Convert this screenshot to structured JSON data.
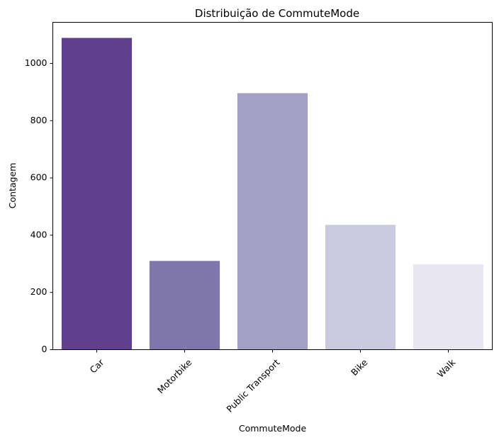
{
  "chart_data": {
    "type": "bar",
    "title": "Distribuição de CommuteMode",
    "xlabel": "CommuteMode",
    "ylabel": "Contagem",
    "categories": [
      "Car",
      "Motorbike",
      "Public Transport",
      "Bike",
      "Walk"
    ],
    "values": [
      1089,
      310,
      896,
      436,
      298
    ],
    "colors": [
      "#5f3f8e",
      "#7f76ab",
      "#a3a0c5",
      "#c9c9df",
      "#e8e6f1"
    ],
    "ylim": [
      0,
      1143.45
    ],
    "yticks": [
      0,
      200,
      400,
      600,
      800,
      1000
    ],
    "grid": false,
    "legend": "none"
  }
}
